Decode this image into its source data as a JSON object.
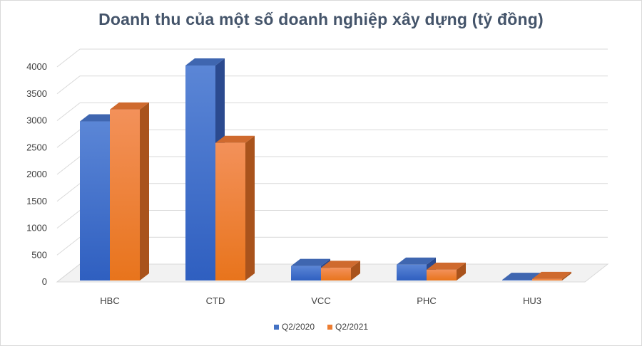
{
  "chart_data": {
    "type": "bar",
    "title": "Doanh thu của một số doanh nghiệp xây dựng (tỷ đồng)",
    "categories": [
      "HBC",
      "CTD",
      "VCC",
      "PHC",
      "HU3"
    ],
    "series": [
      {
        "name": "Q2/2020",
        "values": [
          2960,
          4000,
          270,
          295,
          12
        ],
        "color": "#4472c4"
      },
      {
        "name": "Q2/2021",
        "values": [
          3180,
          2560,
          235,
          200,
          28
        ],
        "color": "#ed7d31"
      }
    ],
    "ylim": [
      0,
      4000
    ],
    "yticks": [
      "0",
      "500",
      "1000",
      "1500",
      "2000",
      "2500",
      "3000",
      "3500",
      "4000"
    ],
    "xlabel": "",
    "ylabel": "",
    "grid": true,
    "legend_position": "bottom",
    "style": "3d-column"
  }
}
